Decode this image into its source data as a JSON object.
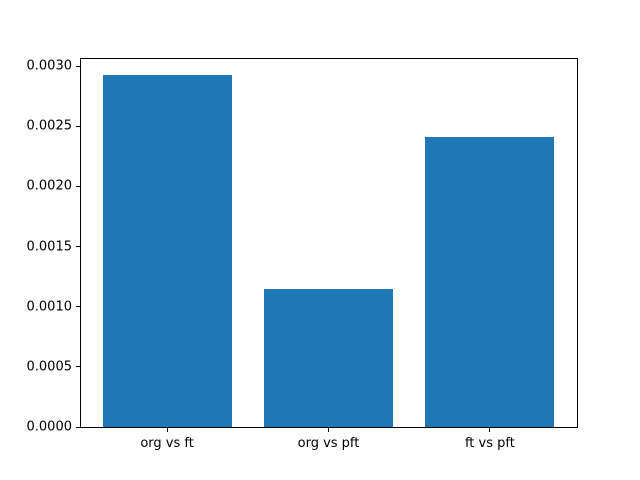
{
  "chart_data": {
    "type": "bar",
    "title": "",
    "xlabel": "",
    "ylabel": "",
    "categories": [
      "org vs ft",
      "org vs pft",
      "ft vs pft"
    ],
    "values": [
      0.00293,
      0.00115,
      0.00241
    ],
    "bar_color": "#1f77b4",
    "background_color": "#ffffff",
    "axis_color": "#000000",
    "ylim": [
      0,
      0.003067
    ],
    "xlim": [
      -0.54,
      2.54
    ],
    "bar_width_units": 0.8,
    "yticks": [
      0.0,
      0.0005,
      0.001,
      0.0015,
      0.002,
      0.0025,
      0.003
    ],
    "ytick_labels": [
      "0.0000",
      "0.0005",
      "0.0010",
      "0.0015",
      "0.0020",
      "0.0025",
      "0.0030"
    ],
    "grid": false,
    "legend": false
  }
}
